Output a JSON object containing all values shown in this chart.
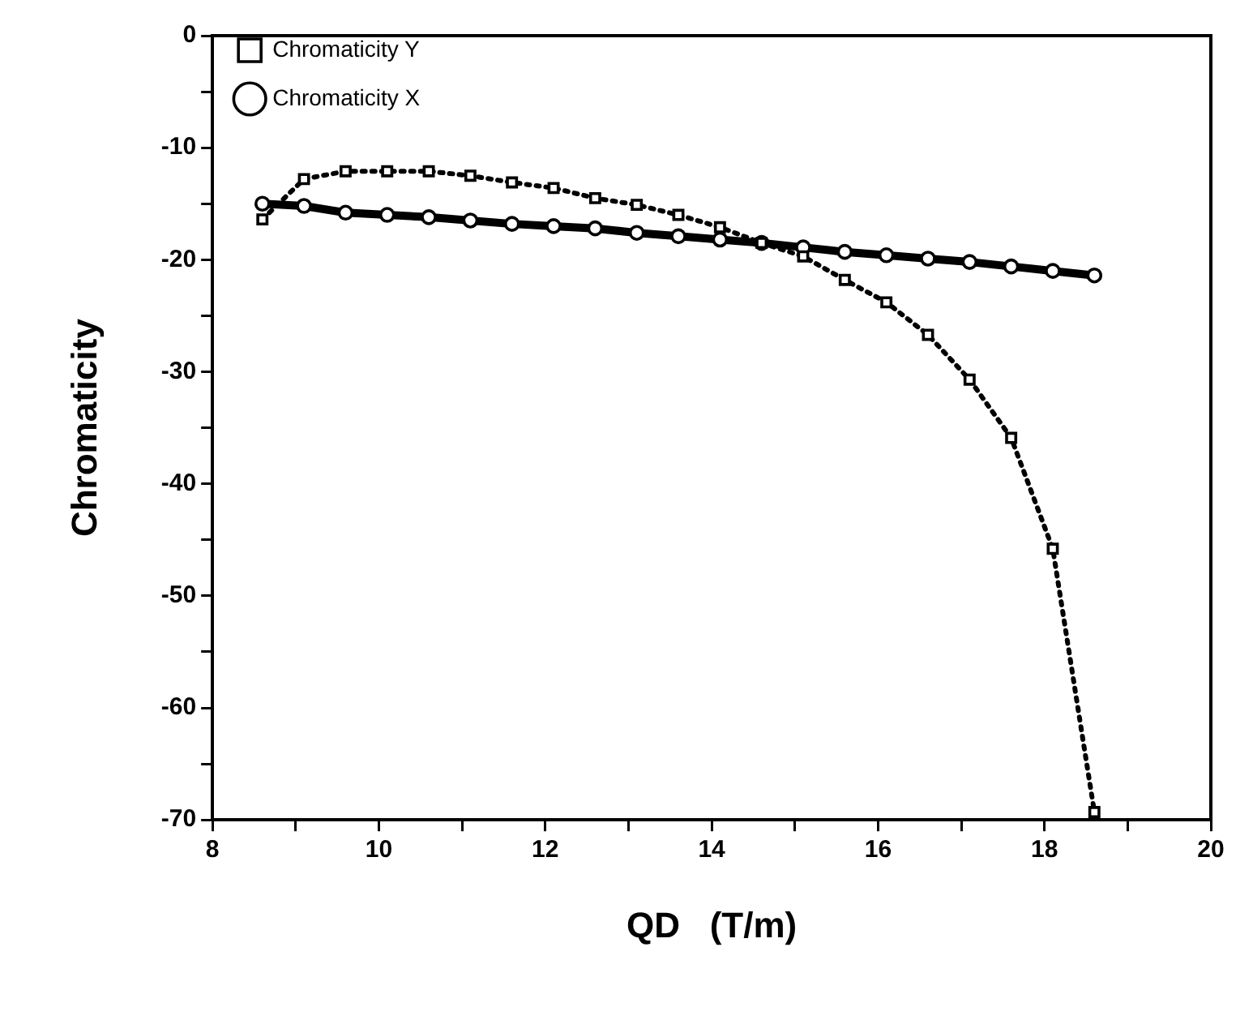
{
  "chart_data": {
    "type": "line",
    "xlabel": "QD   (T/m)",
    "ylabel": "Chromaticity",
    "x": [
      8.6,
      9.1,
      9.6,
      10.1,
      10.6,
      11.1,
      11.6,
      12.1,
      12.6,
      13.1,
      13.6,
      14.1,
      14.6,
      15.1,
      15.6,
      16.1,
      16.6,
      17.1,
      17.6,
      18.1,
      18.6
    ],
    "series": [
      {
        "name": "Chromaticity X",
        "color": "#000000",
        "marker": "circle",
        "line_style": "solid",
        "values": [
          -15.0,
          -15.2,
          -15.8,
          -16.0,
          -16.2,
          -16.5,
          -16.8,
          -17.0,
          -17.2,
          -17.6,
          -17.9,
          -18.2,
          -18.5,
          -18.9,
          -19.3,
          -19.6,
          -19.9,
          -20.2,
          -20.6,
          -21.0,
          -21.4
        ]
      },
      {
        "name": "Chromaticity Y",
        "color": "#000000",
        "marker": "square",
        "line_style": "dotted",
        "values": [
          -16.4,
          -12.8,
          -12.1,
          -12.1,
          -12.1,
          -12.5,
          -13.1,
          -13.6,
          -14.5,
          -15.1,
          -16.0,
          -17.1,
          -18.5,
          -19.7,
          -21.8,
          -23.8,
          -26.7,
          -30.7,
          -35.9,
          -45.8,
          -69.3
        ]
      }
    ],
    "xlim": [
      8,
      20
    ],
    "xticks": [
      8,
      {
        "value": 9,
        "label": null
      },
      10,
      {
        "value": 11,
        "label": null
      },
      12,
      {
        "value": 13,
        "label": null
      },
      14,
      {
        "value": 15,
        "label": null
      },
      16,
      {
        "value": 17,
        "label": null
      },
      18,
      {
        "value": 19,
        "label": null
      },
      20
    ],
    "ylim": [
      -70,
      0
    ],
    "yticks": [
      -70,
      {
        "value": -65,
        "label": null
      },
      -60,
      {
        "value": -55,
        "label": null
      },
      -50,
      {
        "value": -45,
        "label": null
      },
      -40,
      {
        "value": -35,
        "label": null
      },
      -30,
      {
        "value": -25,
        "label": null
      },
      -20,
      {
        "value": -15,
        "label": null
      },
      -10,
      {
        "value": -5,
        "label": null
      },
      0
    ],
    "grid": false,
    "legend": "top left"
  }
}
